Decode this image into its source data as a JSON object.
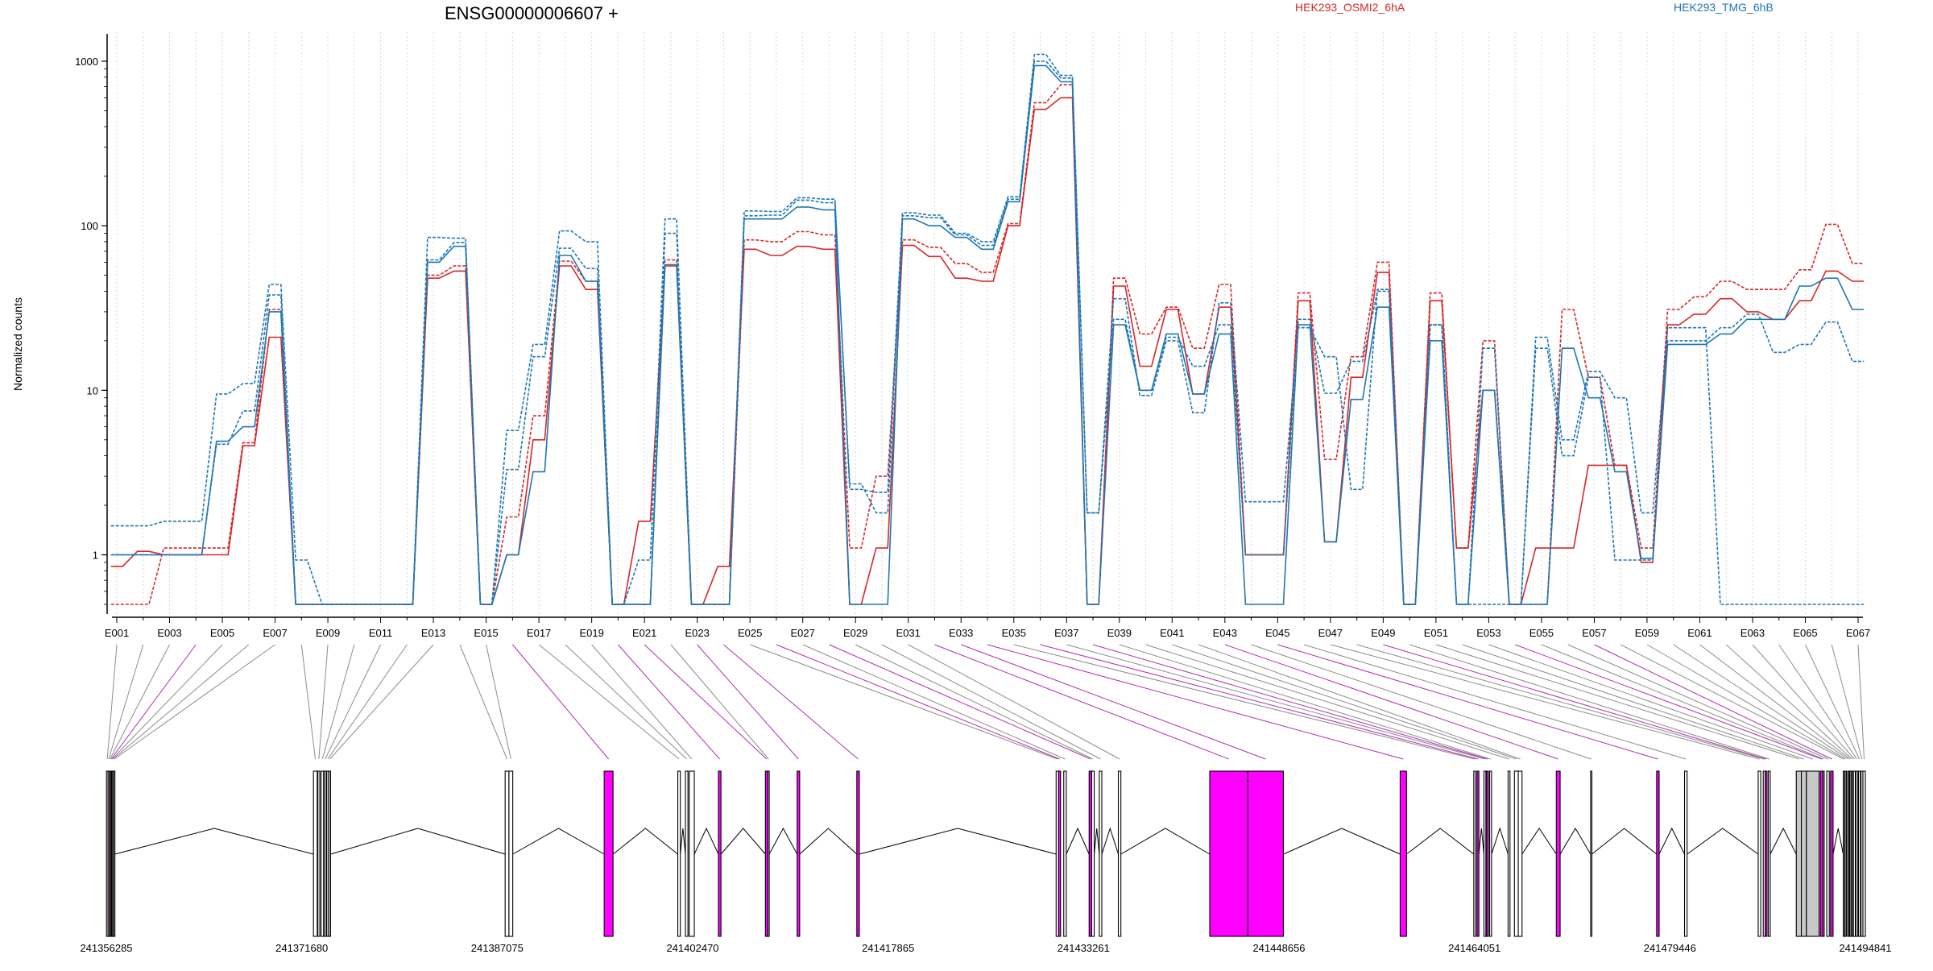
{
  "chart_data": {
    "type": "line",
    "title": "ENSG00000006607 +",
    "ylabel": "Normalized counts",
    "yscale": "log",
    "ylim": [
      0.5,
      1500
    ],
    "yticks": [
      1,
      10,
      100,
      1000
    ],
    "ytick_labels": [
      "1",
      "10",
      "100",
      "1000"
    ],
    "exons": [
      "E001",
      "E002",
      "E003",
      "E004",
      "E005",
      "E006",
      "E007",
      "E008",
      "E009",
      "E010",
      "E011",
      "E012",
      "E013",
      "E014",
      "E015",
      "E016",
      "E017",
      "E018",
      "E019",
      "E020",
      "E021",
      "E022",
      "E023",
      "E024",
      "E025",
      "E026",
      "E027",
      "E028",
      "E029",
      "E030",
      "E031",
      "E032",
      "E033",
      "E034",
      "E035",
      "E036",
      "E037",
      "E038",
      "E039",
      "E040",
      "E041",
      "E042",
      "E043",
      "E044",
      "E045",
      "E046",
      "E047",
      "E048",
      "E049",
      "E050",
      "E051",
      "E052",
      "E053",
      "E054",
      "E055",
      "E056",
      "E057",
      "E058",
      "E059",
      "E060",
      "E061",
      "E062",
      "E063",
      "E064",
      "E065",
      "E066",
      "E067"
    ],
    "exon_labels_shown": [
      "E001",
      "E003",
      "E005",
      "E007",
      "E009",
      "E011",
      "E013",
      "E015",
      "E017",
      "E019",
      "E021",
      "E023",
      "E025",
      "E027",
      "E029",
      "E031",
      "E033",
      "E035",
      "E037",
      "E039",
      "E041",
      "E043",
      "E045",
      "E047",
      "E049",
      "E051",
      "E053",
      "E055",
      "E057",
      "E059",
      "E061",
      "E063",
      "E065",
      "E067"
    ],
    "series": [
      {
        "name": "HEK293_OSMI2_6hA",
        "color": "#d62728",
        "dashed": false,
        "values": [
          0.85,
          1.05,
          1.0,
          1.0,
          1.0,
          4.6,
          21,
          0.5,
          0.5,
          0.5,
          0.5,
          0.5,
          48,
          53,
          0.5,
          1.0,
          5.0,
          57,
          41,
          0.5,
          1.6,
          57,
          0.5,
          0.85,
          72,
          66,
          75,
          72,
          0.5,
          1.1,
          76,
          65,
          48,
          46,
          100,
          510,
          600,
          0.5,
          43,
          14,
          31,
          9.5,
          32,
          1.0,
          1.0,
          35,
          1.2,
          12,
          52,
          0.5,
          35,
          1.1,
          10,
          0.5,
          1.1,
          1.1,
          3.5,
          3.5,
          0.9,
          25,
          29,
          36,
          30,
          27,
          35,
          53,
          46
        ]
      },
      {
        "name": "HEK293_OSMI2_6hA",
        "color": "#d62728",
        "dashed": true,
        "values": [
          0.5,
          0.5,
          1.1,
          1.1,
          1.1,
          4.8,
          31,
          0.5,
          0.5,
          0.5,
          0.5,
          0.5,
          50,
          57,
          0.5,
          1.7,
          7.0,
          61,
          46,
          0.5,
          0.5,
          62,
          0.5,
          0.5,
          82,
          80,
          92,
          88,
          1.1,
          3.0,
          82,
          74,
          59,
          52,
          103,
          560,
          720,
          0.5,
          48,
          22,
          32,
          18,
          44,
          1.0,
          1.0,
          39,
          3.8,
          16,
          60,
          0.5,
          39,
          1.1,
          20,
          0.5,
          0.5,
          31,
          12,
          3.5,
          1.1,
          31,
          37,
          46,
          41,
          41,
          54,
          102,
          59
        ]
      },
      {
        "name": "HEK293_TMG_6hB",
        "color": "#1f77b4",
        "dashed": false,
        "values": [
          1.0,
          1.0,
          1.0,
          1.0,
          4.9,
          6.0,
          30,
          0.5,
          0.5,
          0.5,
          0.5,
          0.5,
          60,
          75,
          0.5,
          1.0,
          3.2,
          66,
          46,
          0.5,
          0.5,
          58,
          0.5,
          0.5,
          110,
          110,
          130,
          125,
          0.5,
          0.5,
          110,
          100,
          85,
          72,
          140,
          940,
          750,
          0.5,
          25,
          10,
          22,
          9.5,
          22,
          0.5,
          0.5,
          25,
          1.2,
          8.8,
          32,
          0.5,
          20,
          0.5,
          10,
          0.5,
          0.5,
          18,
          9.0,
          3.2,
          0.95,
          19,
          19,
          22,
          27,
          27,
          43,
          48,
          31
        ]
      },
      {
        "name": "HEK293_TMG_6hB",
        "color": "#1f77b4",
        "dashed": true,
        "values": [
          1.5,
          1.5,
          1.6,
          1.6,
          9.5,
          11,
          44,
          0.93,
          0.5,
          0.5,
          0.5,
          0.5,
          85,
          84,
          0.5,
          5.7,
          19,
          93,
          80,
          0.5,
          0.93,
          110,
          0.5,
          0.5,
          123,
          122,
          148,
          145,
          2.5,
          2.4,
          120,
          116,
          90,
          80,
          150,
          1100,
          820,
          1.8,
          36,
          9.3,
          20,
          7.3,
          34,
          2.1,
          2.1,
          24,
          16,
          2.5,
          41,
          0.5,
          25,
          0.5,
          0.5,
          0.5,
          21,
          5.0,
          13,
          9.0,
          1.8,
          24,
          24,
          0.5,
          0.5,
          0.5,
          0.5,
          0.5,
          0.5
        ]
      },
      {
        "name": "HEK293_TMG_6hB",
        "color": "#1f77b4",
        "dashed": true,
        "values": [
          1.0,
          1.0,
          1.0,
          1.0,
          4.7,
          7.5,
          38,
          0.5,
          0.5,
          0.5,
          0.5,
          0.5,
          62,
          79,
          0.5,
          3.3,
          16,
          73,
          55,
          0.5,
          0.5,
          90,
          0.5,
          0.5,
          115,
          116,
          143,
          138,
          2.7,
          1.8,
          115,
          112,
          88,
          76,
          145,
          1000,
          790,
          1.8,
          27,
          10,
          21,
          14,
          25,
          1.0,
          1.0,
          27,
          9.6,
          15,
          40,
          0.5,
          25,
          0.5,
          18,
          0.5,
          18,
          4.0,
          12,
          0.93,
          0.93,
          20,
          20,
          24,
          29,
          17,
          19,
          26,
          15
        ]
      }
    ],
    "legend": [
      "HEK293_OSMI2_6hA",
      "HEK293_TMG_6hB"
    ],
    "legend_colors": [
      "#d62728",
      "#1f77b4"
    ],
    "gene_model": {
      "coord_labels": [
        "241356285",
        "241371680",
        "241387075",
        "241402470",
        "241417865",
        "241433261",
        "241448656",
        "241464051",
        "241479446",
        "241494841"
      ],
      "coord_start": 241356285,
      "coord_end": 241494841,
      "highlight_color": "#ff00ff",
      "exons": [
        {
          "id": "E001",
          "start": 241356300,
          "end": 241356420,
          "fill": "white"
        },
        {
          "id": "E002",
          "start": 241356420,
          "end": 241356520,
          "fill": "white"
        },
        {
          "id": "E003",
          "start": 241356520,
          "end": 241356620,
          "fill": "white"
        },
        {
          "id": "E004",
          "start": 241356620,
          "end": 241356700,
          "fill": "magenta"
        },
        {
          "id": "E005",
          "start": 241356700,
          "end": 241356780,
          "fill": "white"
        },
        {
          "id": "E006",
          "start": 241356780,
          "end": 241356860,
          "fill": "white"
        },
        {
          "id": "E007",
          "start": 241356860,
          "end": 241356960,
          "fill": "white"
        },
        {
          "id": "E008",
          "start": 241372600,
          "end": 241372900,
          "fill": "white"
        },
        {
          "id": "E009",
          "start": 241372950,
          "end": 241373100,
          "fill": "white"
        },
        {
          "id": "E010",
          "start": 241373200,
          "end": 241373400,
          "fill": "white"
        },
        {
          "id": "E011",
          "start": 241373450,
          "end": 241373600,
          "fill": "white"
        },
        {
          "id": "E012",
          "start": 241373650,
          "end": 241373800,
          "fill": "white"
        },
        {
          "id": "E013",
          "start": 241373820,
          "end": 241373950,
          "fill": "white"
        },
        {
          "id": "E014",
          "start": 241387700,
          "end": 241388000,
          "fill": "white"
        },
        {
          "id": "E015",
          "start": 241388000,
          "end": 241388300,
          "fill": "white"
        },
        {
          "id": "E016",
          "start": 241395500,
          "end": 241396200,
          "fill": "magenta"
        },
        {
          "id": "E017",
          "start": 241401300,
          "end": 241401500,
          "fill": "white"
        },
        {
          "id": "E018",
          "start": 241401900,
          "end": 241402100,
          "fill": "white"
        },
        {
          "id": "E019",
          "start": 241402200,
          "end": 241402600,
          "fill": "white"
        },
        {
          "id": "E020",
          "start": 241404500,
          "end": 241404700,
          "fill": "magenta"
        },
        {
          "id": "E021",
          "start": 241408200,
          "end": 241408400,
          "fill": "magenta"
        },
        {
          "id": "E022",
          "start": 241408400,
          "end": 241408500,
          "fill": "white"
        },
        {
          "id": "E023",
          "start": 241410700,
          "end": 241410900,
          "fill": "magenta"
        },
        {
          "id": "E024",
          "start": 241415400,
          "end": 241415600,
          "fill": "magenta"
        },
        {
          "id": "E025",
          "start": 241431100,
          "end": 241431300,
          "fill": "white"
        },
        {
          "id": "E026",
          "start": 241431300,
          "end": 241431450,
          "fill": "magenta"
        },
        {
          "id": "E027",
          "start": 241431700,
          "end": 241431900,
          "fill": "white"
        },
        {
          "id": "E028",
          "start": 241433700,
          "end": 241433900,
          "fill": "magenta"
        },
        {
          "id": "E029",
          "start": 241433900,
          "end": 241434100,
          "fill": "white"
        },
        {
          "id": "E030",
          "start": 241434500,
          "end": 241434700,
          "fill": "white"
        },
        {
          "id": "E031",
          "start": 241436000,
          "end": 241436200,
          "fill": "white"
        },
        {
          "id": "E032",
          "start": 241443200,
          "end": 241446200,
          "fill": "magenta"
        },
        {
          "id": "E033",
          "start": 241446200,
          "end": 241449000,
          "fill": "magenta"
        },
        {
          "id": "E034",
          "start": 241458200,
          "end": 241458700,
          "fill": "magenta"
        },
        {
          "id": "E035",
          "start": 241464000,
          "end": 241464150,
          "fill": "white"
        },
        {
          "id": "E036",
          "start": 241464250,
          "end": 241464400,
          "fill": "magenta"
        },
        {
          "id": "E037",
          "start": 241464800,
          "end": 241464950,
          "fill": "white"
        },
        {
          "id": "E038",
          "start": 241465000,
          "end": 241465150,
          "fill": "magenta"
        },
        {
          "id": "E039",
          "start": 241465250,
          "end": 241465400,
          "fill": "white"
        },
        {
          "id": "E040",
          "start": 241466700,
          "end": 241466850,
          "fill": "white"
        },
        {
          "id": "E041",
          "start": 241467200,
          "end": 241467500,
          "fill": "white"
        },
        {
          "id": "E042",
          "start": 241467500,
          "end": 241467800,
          "fill": "white"
        },
        {
          "id": "E043",
          "start": 241470500,
          "end": 241470800,
          "fill": "magenta"
        },
        {
          "id": "E044",
          "start": 241473200,
          "end": 241473300,
          "fill": "white"
        },
        {
          "id": "E045",
          "start": 241478400,
          "end": 241478600,
          "fill": "magenta"
        },
        {
          "id": "E046",
          "start": 241480600,
          "end": 241480800,
          "fill": "white"
        },
        {
          "id": "E047",
          "start": 241486400,
          "end": 241486600,
          "fill": "white"
        },
        {
          "id": "E048",
          "start": 241486800,
          "end": 241486950,
          "fill": "white"
        },
        {
          "id": "E049",
          "start": 241486950,
          "end": 241487100,
          "fill": "magenta"
        },
        {
          "id": "E050",
          "start": 241487200,
          "end": 241487350,
          "fill": "white"
        },
        {
          "id": "E051",
          "start": 241489400,
          "end": 241489800,
          "fill": "grey"
        },
        {
          "id": "E052",
          "start": 241489800,
          "end": 241490200,
          "fill": "grey"
        },
        {
          "id": "E053",
          "start": 241490200,
          "end": 241491200,
          "fill": "grey"
        },
        {
          "id": "E054",
          "start": 241491300,
          "end": 241491500,
          "fill": "magenta"
        },
        {
          "id": "E055",
          "start": 241491500,
          "end": 241491600,
          "fill": "white"
        },
        {
          "id": "E056",
          "start": 241491800,
          "end": 241492000,
          "fill": "white"
        },
        {
          "id": "E057",
          "start": 241492100,
          "end": 241492300,
          "fill": "magenta"
        },
        {
          "id": "E058",
          "start": 241493100,
          "end": 241493200,
          "fill": "white"
        },
        {
          "id": "E059",
          "start": 241493250,
          "end": 241493350,
          "fill": "white"
        },
        {
          "id": "E060",
          "start": 241493450,
          "end": 241493550,
          "fill": "white"
        },
        {
          "id": "E061",
          "start": 241493600,
          "end": 241493700,
          "fill": "white"
        },
        {
          "id": "E062",
          "start": 241493750,
          "end": 241493850,
          "fill": "white"
        },
        {
          "id": "E063",
          "start": 241493900,
          "end": 241494050,
          "fill": "white"
        },
        {
          "id": "E064",
          "start": 241494100,
          "end": 241494250,
          "fill": "white"
        },
        {
          "id": "E065",
          "start": 241494300,
          "end": 241494450,
          "fill": "white"
        },
        {
          "id": "E066",
          "start": 241494500,
          "end": 241494650,
          "fill": "white"
        },
        {
          "id": "E067",
          "start": 241494650,
          "end": 241494841,
          "fill": "white"
        }
      ]
    }
  }
}
